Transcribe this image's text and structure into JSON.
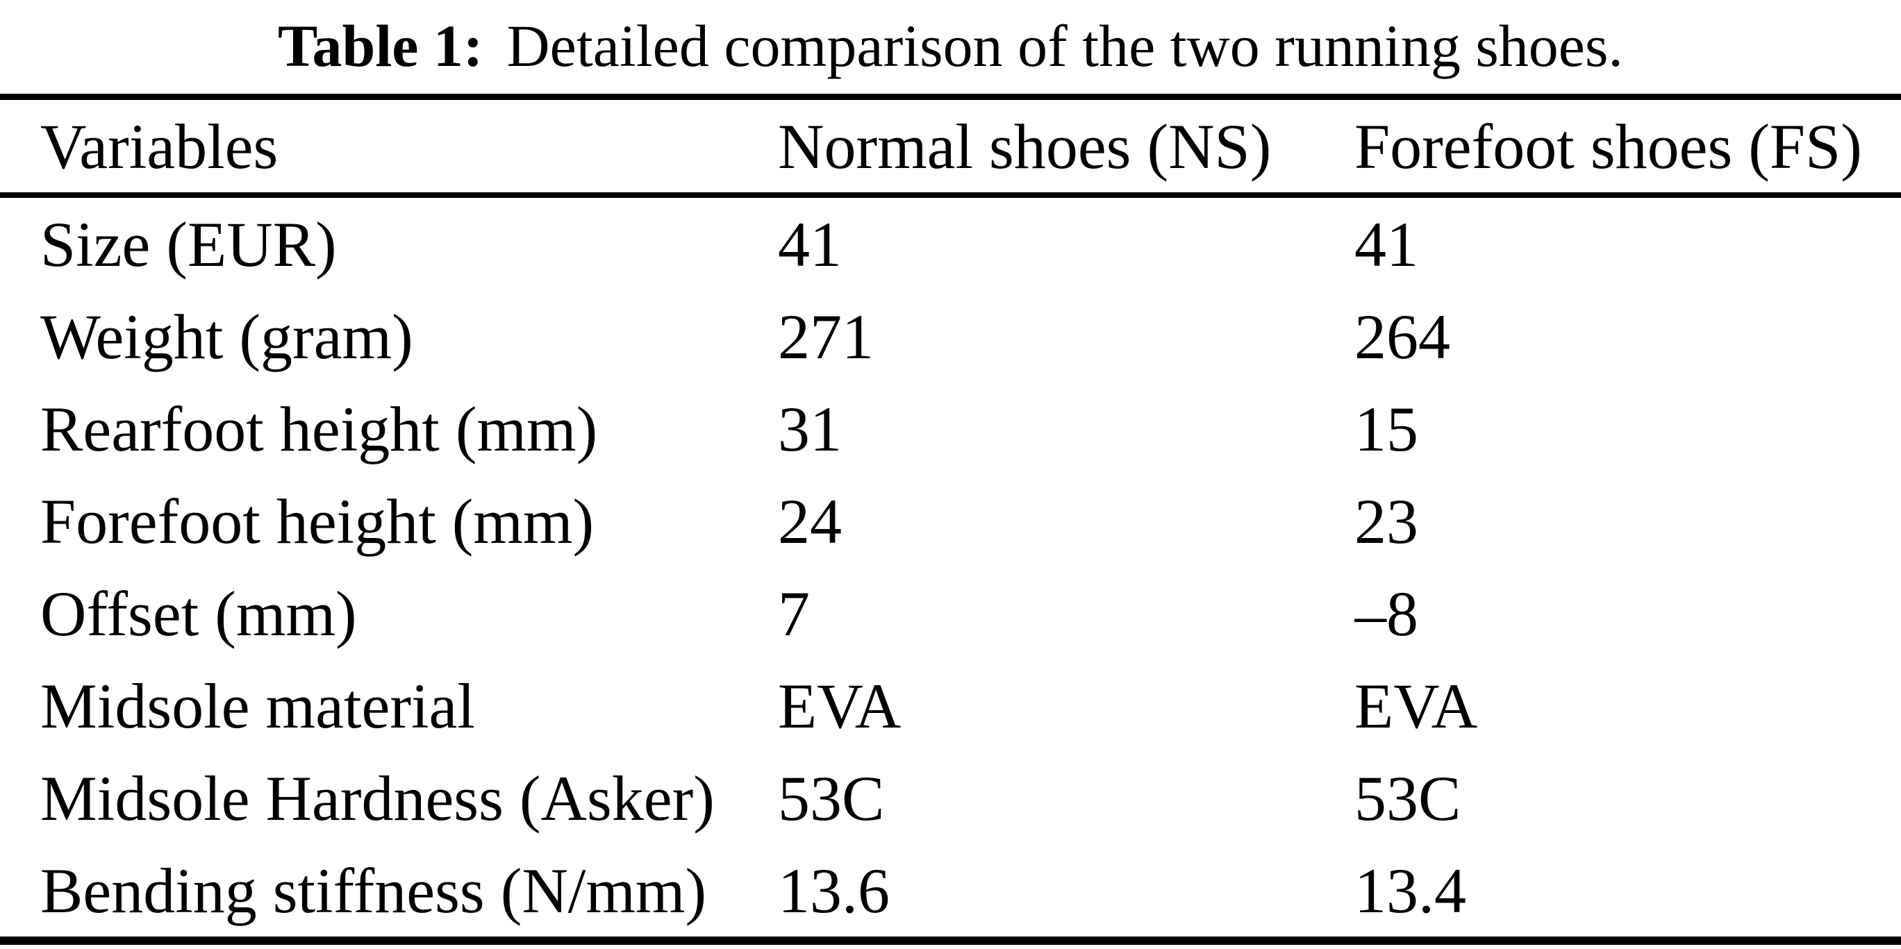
{
  "caption": {
    "label": "Table 1:",
    "text": "Detailed comparison of the two running shoes."
  },
  "table": {
    "columns": [
      "Variables",
      "Normal shoes (NS)",
      "Forefoot shoes (FS)"
    ],
    "rows": [
      {
        "variable": "Size (EUR)",
        "ns": "41",
        "fs": "41"
      },
      {
        "variable": "Weight (gram)",
        "ns": "271",
        "fs": "264"
      },
      {
        "variable": "Rearfoot height (mm)",
        "ns": "31",
        "fs": "15"
      },
      {
        "variable": "Forefoot height (mm)",
        "ns": "24",
        "fs": "23"
      },
      {
        "variable": "Offset (mm)",
        "ns": "7",
        "fs": "–8"
      },
      {
        "variable": "Midsole material",
        "ns": "EVA",
        "fs": "EVA"
      },
      {
        "variable": "Midsole Hardness (Asker)",
        "ns": "53C",
        "fs": "53C"
      },
      {
        "variable": "Bending stiffness (N/mm)",
        "ns": "13.6",
        "fs": "13.4"
      }
    ]
  },
  "chart_data": {
    "type": "table",
    "title": "Table 1: Detailed comparison of the two running shoes.",
    "columns": [
      "Variables",
      "Normal shoes (NS)",
      "Forefoot shoes (FS)"
    ],
    "rows": [
      [
        "Size (EUR)",
        "41",
        "41"
      ],
      [
        "Weight (gram)",
        "271",
        "264"
      ],
      [
        "Rearfoot height (mm)",
        "31",
        "15"
      ],
      [
        "Forefoot height (mm)",
        "24",
        "23"
      ],
      [
        "Offset (mm)",
        "7",
        "–8"
      ],
      [
        "Midsole material",
        "EVA",
        "EVA"
      ],
      [
        "Midsole Hardness (Asker)",
        "53C",
        "53C"
      ],
      [
        "Bending stiffness (N/mm)",
        "13.6",
        "13.4"
      ]
    ]
  },
  "colors": {
    "text": "#000000",
    "background": "#ffffff",
    "rule": "#000000"
  }
}
